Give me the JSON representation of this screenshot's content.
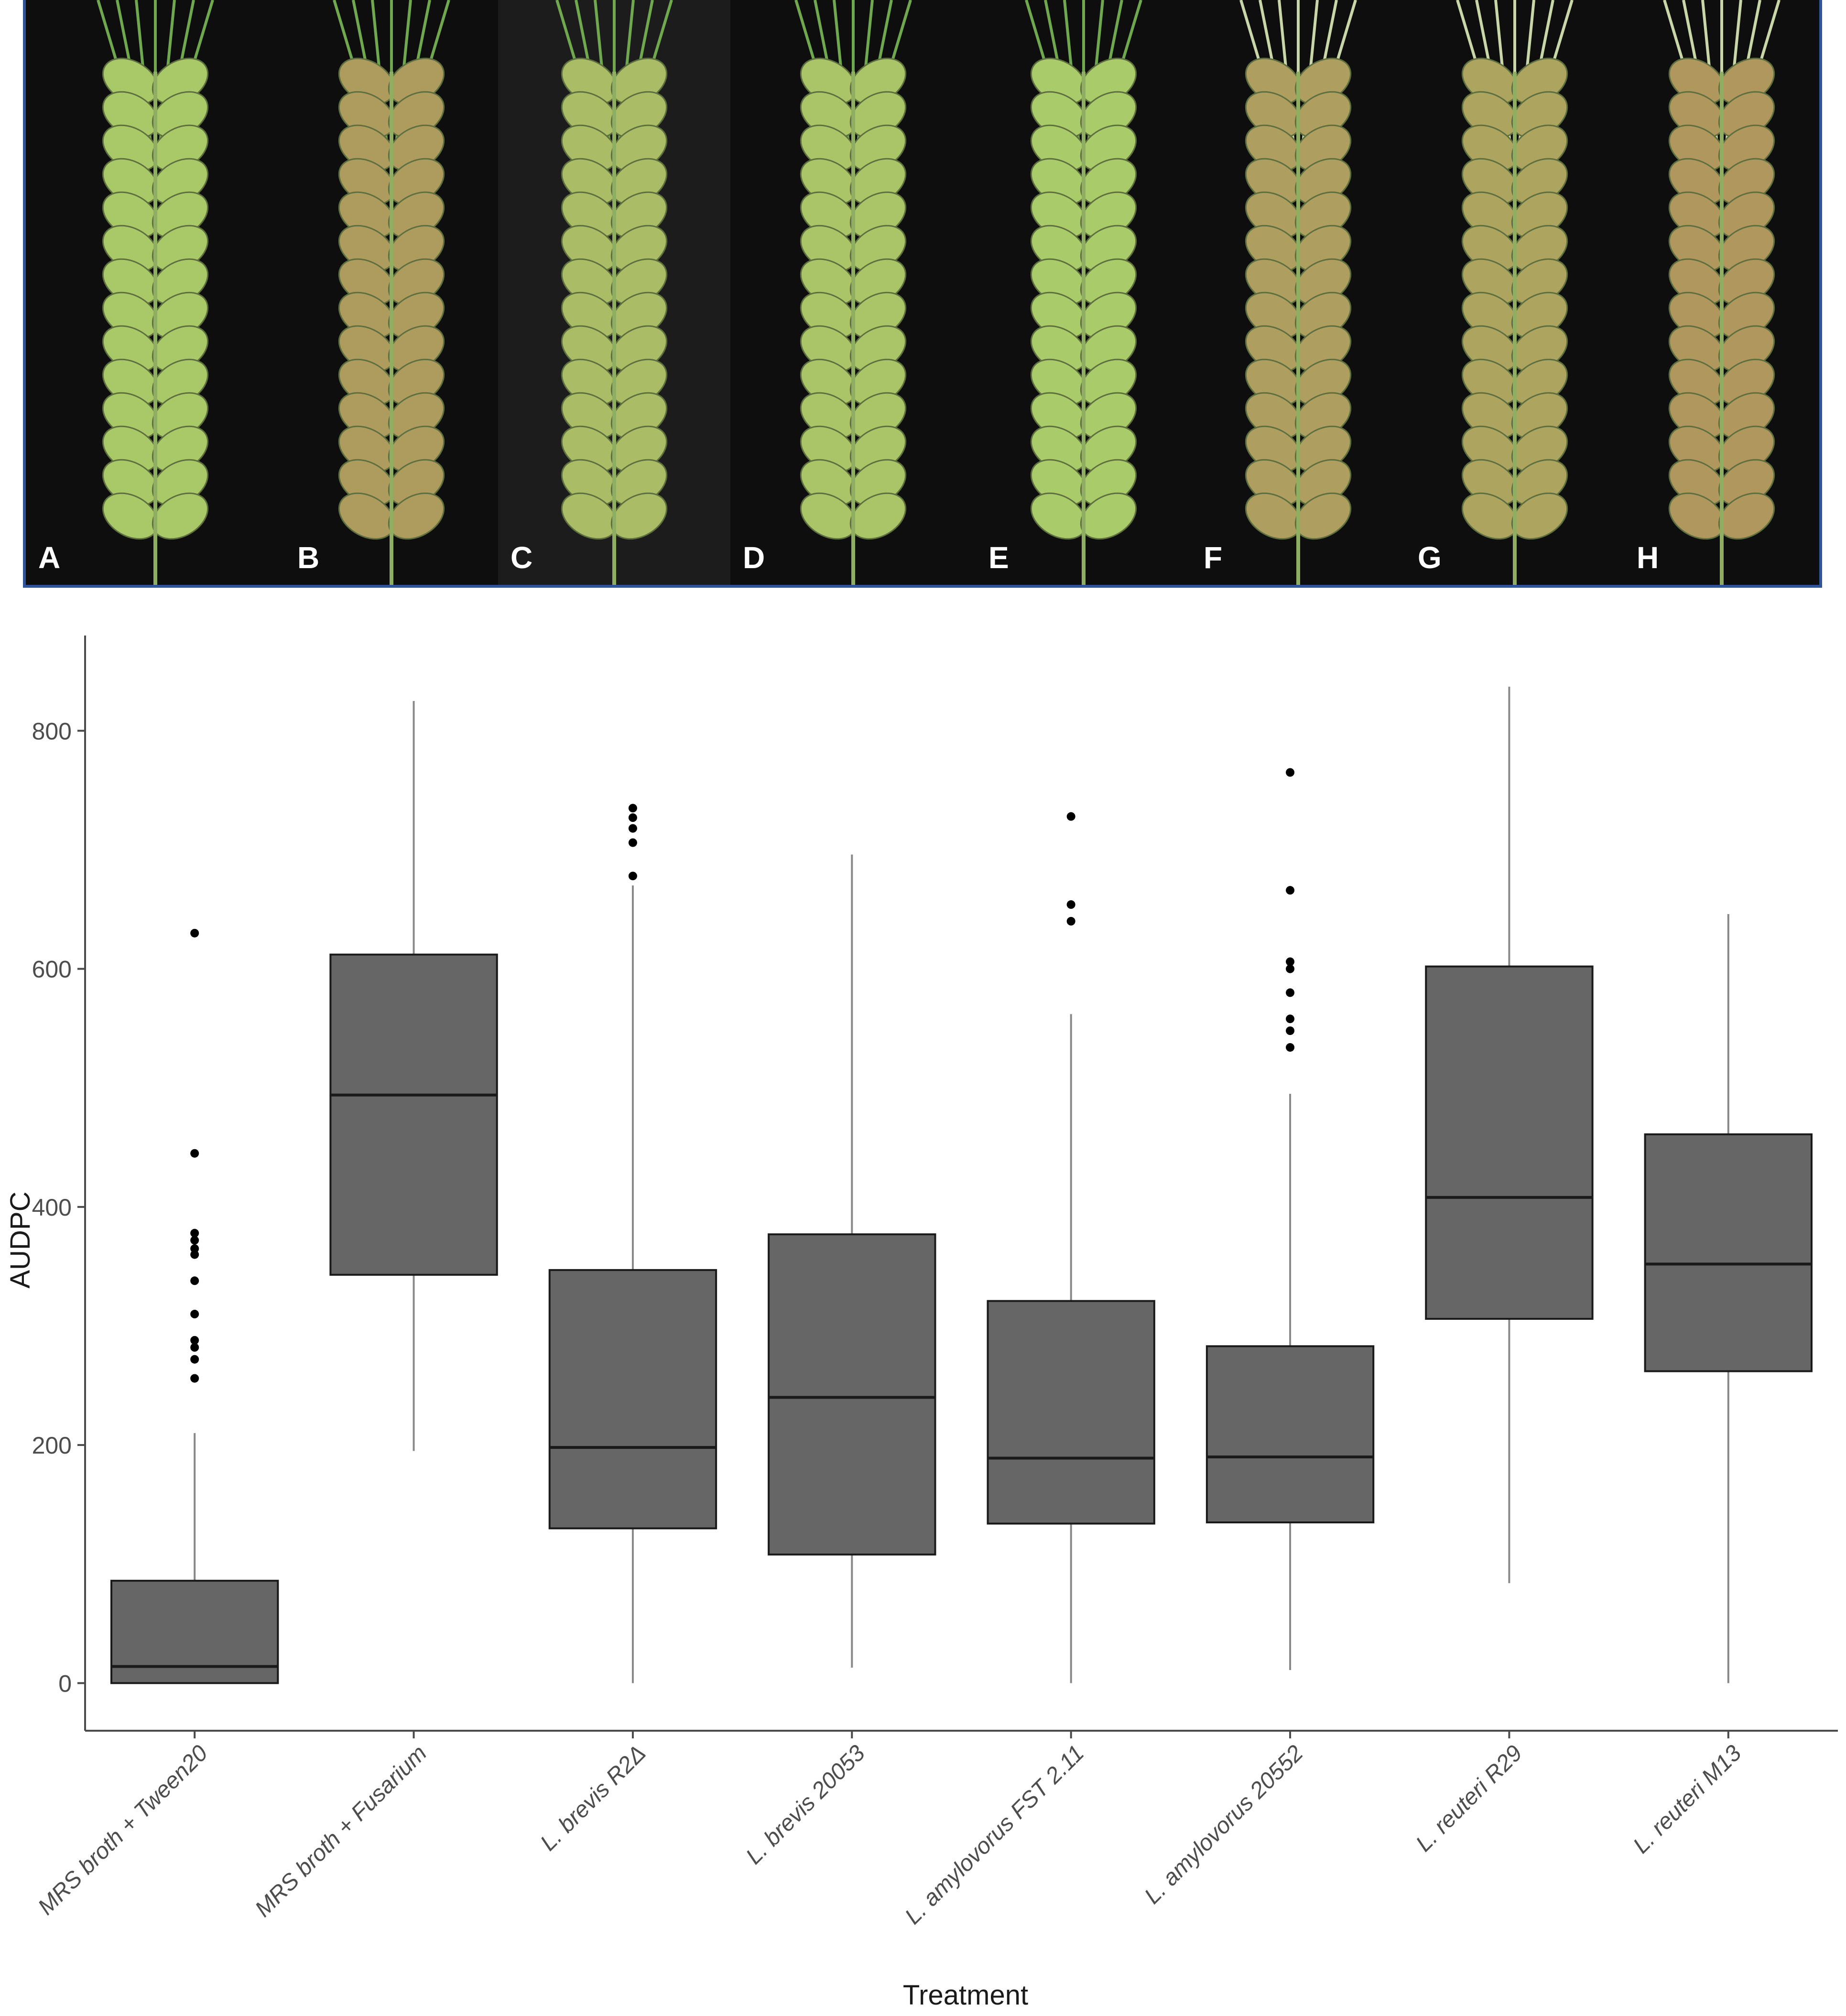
{
  "panels": [
    {
      "label": "A",
      "health": 0.05
    },
    {
      "label": "B",
      "health": 0.75
    },
    {
      "label": "C",
      "health": 0.25
    },
    {
      "label": "D",
      "health": 0.1
    },
    {
      "label": "E",
      "health": 0.02
    },
    {
      "label": "F",
      "health": 0.7
    },
    {
      "label": "G",
      "health": 0.6
    },
    {
      "label": "H",
      "health": 0.8
    }
  ],
  "colors": {
    "box_fill": "#666666",
    "box_stroke": "#1a1a1a",
    "whisker": "#888888",
    "axis": "#4a4a4a",
    "text": "#4d4d4d",
    "title": "#1a1a1a",
    "photo_border": "#2f5597",
    "healthy_green": "#a9cc6a",
    "infected_brown": "#b08a5a"
  },
  "chart_data": {
    "type": "box",
    "xlabel": "Treatment",
    "ylabel": "AUDPC",
    "ylim": [
      -40,
      880
    ],
    "yticks": [
      0,
      200,
      400,
      600,
      800
    ],
    "grid": false,
    "categories": [
      "MRS broth + Tween20",
      "MRS broth + Fusarium",
      "L. brevis R2Δ",
      "L. brevis 20053",
      "L. amylovorus FST 2.11",
      "L. amylovorus 20552",
      "L. reuteri R29",
      "L. reuteri M13"
    ],
    "boxes": [
      {
        "min": 0,
        "q1": 0,
        "median": 14,
        "q3": 86,
        "max": 210,
        "outliers": [
          630,
          445,
          378,
          372,
          365,
          360,
          338,
          310,
          288,
          282,
          272,
          256
        ]
      },
      {
        "min": 195,
        "q1": 343,
        "median": 494,
        "q3": 612,
        "max": 825,
        "outliers": []
      },
      {
        "min": 0,
        "q1": 130,
        "median": 198,
        "q3": 347,
        "max": 670,
        "outliers": [
          735,
          727,
          718,
          706,
          678
        ]
      },
      {
        "min": 13,
        "q1": 108,
        "median": 240,
        "q3": 377,
        "max": 696,
        "outliers": []
      },
      {
        "min": 0,
        "q1": 134,
        "median": 189,
        "q3": 321,
        "max": 562,
        "outliers": [
          728,
          654,
          640
        ]
      },
      {
        "min": 11,
        "q1": 135,
        "median": 190,
        "q3": 283,
        "max": 495,
        "outliers": [
          765,
          666,
          606,
          600,
          580,
          558,
          548,
          534
        ]
      },
      {
        "min": 84,
        "q1": 306,
        "median": 408,
        "q3": 602,
        "max": 837,
        "outliers": []
      },
      {
        "min": 0,
        "q1": 262,
        "median": 352,
        "q3": 461,
        "max": 646,
        "outliers": []
      }
    ]
  }
}
